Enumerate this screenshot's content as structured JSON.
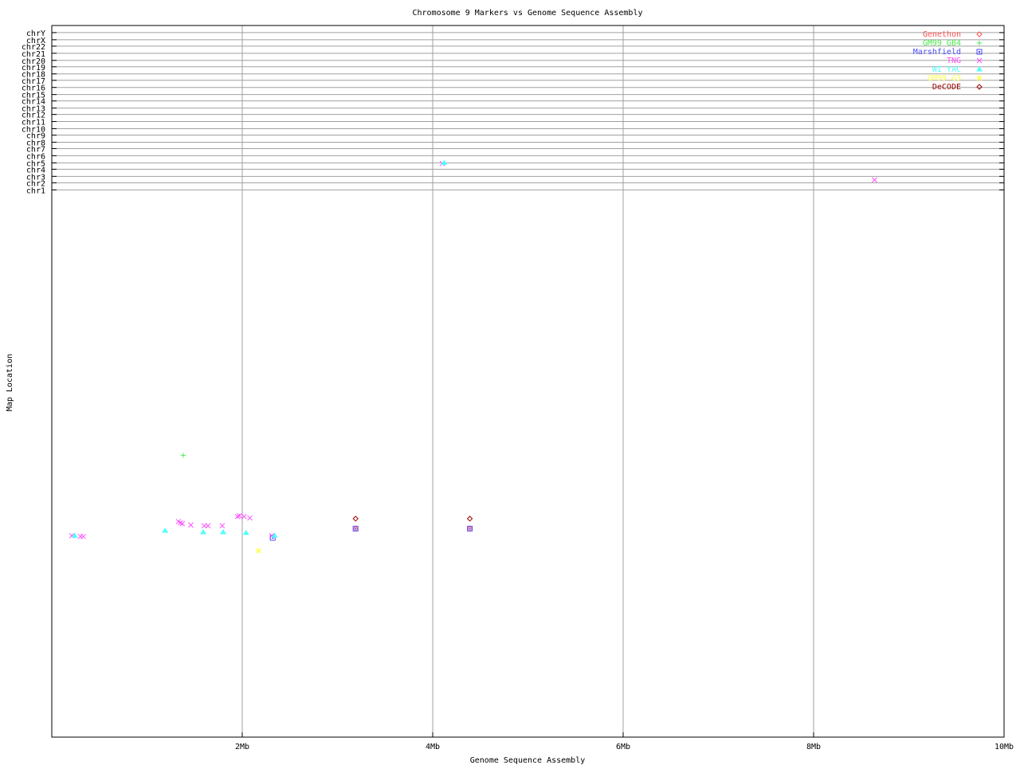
{
  "chart_data": {
    "type": "scatter",
    "title": "Chromosome 9 Markers vs Genome Sequence Assembly",
    "xlabel": "Genome Sequence Assembly",
    "ylabel": "Map Location",
    "xlim": [
      0,
      10
    ],
    "ylim": [
      0,
      100
    ],
    "x_ticks": [
      {
        "value": 2,
        "label": "2Mb"
      },
      {
        "value": 4,
        "label": "4Mb"
      },
      {
        "value": 6,
        "label": "6Mb"
      },
      {
        "value": 8,
        "label": "8Mb"
      },
      {
        "value": 10,
        "label": "10Mb"
      }
    ],
    "y_ticks": [
      {
        "value": 99.0,
        "label": "chrY"
      },
      {
        "value": 98.0,
        "label": "chrX"
      },
      {
        "value": 97.1,
        "label": "chr22"
      },
      {
        "value": 96.1,
        "label": "chr21"
      },
      {
        "value": 95.1,
        "label": "chr20"
      },
      {
        "value": 94.2,
        "label": "chr19"
      },
      {
        "value": 93.2,
        "label": "chr18"
      },
      {
        "value": 92.3,
        "label": "chr17"
      },
      {
        "value": 91.3,
        "label": "chr16"
      },
      {
        "value": 90.3,
        "label": "chr15"
      },
      {
        "value": 89.4,
        "label": "chr14"
      },
      {
        "value": 88.4,
        "label": "chr13"
      },
      {
        "value": 87.5,
        "label": "chr12"
      },
      {
        "value": 86.5,
        "label": "chr11"
      },
      {
        "value": 85.5,
        "label": "chr10"
      },
      {
        "value": 84.6,
        "label": "chr9"
      },
      {
        "value": 83.6,
        "label": "chr8"
      },
      {
        "value": 82.7,
        "label": "chr7"
      },
      {
        "value": 81.7,
        "label": "chr6"
      },
      {
        "value": 80.7,
        "label": "chr5"
      },
      {
        "value": 79.8,
        "label": "chr4"
      },
      {
        "value": 78.8,
        "label": "chr3"
      },
      {
        "value": 77.9,
        "label": "chr2"
      },
      {
        "value": 76.9,
        "label": "chr1"
      }
    ],
    "grid": true,
    "legend_position": "top-right",
    "series": [
      {
        "name": "Genethon",
        "color": "#ff4f4f",
        "marker": "diamond",
        "points": [
          [
            3.19,
            29.3
          ],
          [
            4.39,
            29.3
          ]
        ]
      },
      {
        "name": "GM99 GB4",
        "color": "#4fe84f",
        "marker": "plus",
        "points": [
          [
            1.38,
            39.6
          ]
        ]
      },
      {
        "name": "Marshfield",
        "color": "#4f4fff",
        "marker": "box",
        "points": [
          [
            2.32,
            28.0
          ],
          [
            3.19,
            29.3
          ],
          [
            4.39,
            29.3
          ]
        ]
      },
      {
        "name": "TNG",
        "color": "#ff4fff",
        "marker": "cross",
        "points": [
          [
            0.21,
            28.3
          ],
          [
            0.3,
            28.2
          ],
          [
            0.33,
            28.2
          ],
          [
            1.33,
            30.3
          ],
          [
            1.35,
            30.1
          ],
          [
            1.37,
            30.0
          ],
          [
            1.46,
            29.8
          ],
          [
            1.6,
            29.7
          ],
          [
            1.64,
            29.7
          ],
          [
            1.79,
            29.7
          ],
          [
            1.95,
            31.0
          ],
          [
            1.97,
            31.1
          ],
          [
            2.02,
            31.0
          ],
          [
            2.08,
            30.8
          ],
          [
            2.31,
            28.3
          ],
          [
            4.1,
            80.6
          ],
          [
            8.64,
            78.3
          ]
        ]
      },
      {
        "name": "WI YAC",
        "color": "#4fffff",
        "marker": "triangle",
        "points": [
          [
            0.24,
            28.3
          ],
          [
            1.19,
            29.0
          ],
          [
            1.59,
            28.8
          ],
          [
            1.8,
            28.8
          ],
          [
            2.04,
            28.7
          ],
          [
            2.34,
            28.3
          ],
          [
            4.12,
            80.7
          ]
        ]
      },
      {
        "name": "GM99 G3",
        "color": "#ffff4f",
        "marker": "star",
        "points": [
          [
            2.17,
            26.2
          ]
        ]
      },
      {
        "name": "DeCODE",
        "color": "#a00000",
        "marker": "diamond",
        "points": [
          [
            3.19,
            30.7
          ],
          [
            4.39,
            30.7
          ]
        ]
      }
    ]
  }
}
